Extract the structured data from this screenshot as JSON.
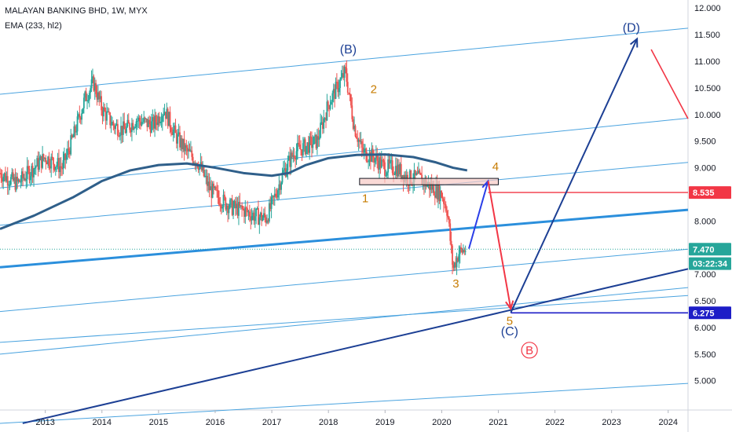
{
  "header": {
    "symbol_line": "MALAYAN BANKING BHD, 1W, MYX",
    "indicator_line": "EMA (233, hl2)"
  },
  "colors": {
    "up": "#26a69a",
    "down": "#ef5350",
    "ema": "#2f5f8a",
    "channel": "#4aa3df",
    "channel_bold": "#2b8fdc",
    "navy": "#1c3f94",
    "red_arrow": "#f23645",
    "wave_label_orange": "#c77c02",
    "price_label_green": "#26a69a",
    "axis_text": "#131722"
  },
  "chart_data": {
    "type": "candlestick",
    "x_range": [
      2012.2,
      2024.35
    ],
    "y_range": [
      4.45,
      12.15
    ],
    "xtick_labels": [
      "2013",
      "2014",
      "2015",
      "2016",
      "2017",
      "2018",
      "2019",
      "2020",
      "2021",
      "2022",
      "2023",
      "2024"
    ],
    "xtick_values": [
      2013,
      2014,
      2015,
      2016,
      2017,
      2018,
      2019,
      2020,
      2021,
      2022,
      2023,
      2024
    ],
    "ytick_labels": [
      "5.000",
      "5.500",
      "6.000",
      "6.500",
      "7.000",
      "7.500",
      "8.000",
      "8.500",
      "9.000",
      "9.500",
      "10.000",
      "10.500",
      "11.000",
      "11.500",
      "12.000"
    ],
    "ytick_values": [
      5.0,
      5.5,
      6.0,
      6.5,
      7.0,
      7.5,
      8.0,
      8.5,
      9.0,
      9.5,
      10.0,
      10.5,
      11.0,
      11.5,
      12.0
    ],
    "price_path": [
      [
        2012.2,
        8.9
      ],
      [
        2012.5,
        8.7
      ],
      [
        2012.8,
        9.0
      ],
      [
        2013.0,
        9.2
      ],
      [
        2013.3,
        9.0
      ],
      [
        2013.5,
        9.6
      ],
      [
        2013.7,
        10.3
      ],
      [
        2013.85,
        10.6
      ],
      [
        2014.0,
        10.1
      ],
      [
        2014.2,
        9.8
      ],
      [
        2014.4,
        9.7
      ],
      [
        2014.6,
        9.9
      ],
      [
        2014.9,
        9.8
      ],
      [
        2015.1,
        10.1
      ],
      [
        2015.3,
        9.6
      ],
      [
        2015.5,
        9.3
      ],
      [
        2015.7,
        9.1
      ],
      [
        2015.9,
        8.6
      ],
      [
        2016.1,
        8.4
      ],
      [
        2016.3,
        8.25
      ],
      [
        2016.5,
        8.2
      ],
      [
        2016.7,
        8.1
      ],
      [
        2016.9,
        8.05
      ],
      [
        2017.0,
        8.3
      ],
      [
        2017.2,
        8.9
      ],
      [
        2017.4,
        9.3
      ],
      [
        2017.6,
        9.4
      ],
      [
        2017.8,
        9.5
      ],
      [
        2018.0,
        10.2
      ],
      [
        2018.15,
        10.5
      ],
      [
        2018.3,
        10.8
      ],
      [
        2018.45,
        9.8
      ],
      [
        2018.6,
        9.3
      ],
      [
        2018.8,
        9.2
      ],
      [
        2019.0,
        9.0
      ],
      [
        2019.2,
        9.0
      ],
      [
        2019.4,
        8.8
      ],
      [
        2019.6,
        8.8
      ],
      [
        2019.8,
        8.65
      ],
      [
        2020.0,
        8.5
      ],
      [
        2020.1,
        8.2
      ],
      [
        2020.2,
        7.1
      ],
      [
        2020.3,
        7.4
      ],
      [
        2020.42,
        7.47
      ]
    ],
    "ema_233": [
      [
        2012.2,
        7.85
      ],
      [
        2012.8,
        8.1
      ],
      [
        2013.5,
        8.45
      ],
      [
        2014.0,
        8.75
      ],
      [
        2014.5,
        8.95
      ],
      [
        2015.0,
        9.05
      ],
      [
        2015.5,
        9.08
      ],
      [
        2016.0,
        9.0
      ],
      [
        2016.5,
        8.9
      ],
      [
        2017.0,
        8.85
      ],
      [
        2017.3,
        8.9
      ],
      [
        2017.6,
        9.05
      ],
      [
        2018.0,
        9.18
      ],
      [
        2018.5,
        9.24
      ],
      [
        2019.0,
        9.25
      ],
      [
        2019.5,
        9.2
      ],
      [
        2019.9,
        9.1
      ],
      [
        2020.2,
        9.0
      ],
      [
        2020.45,
        8.95
      ]
    ],
    "channel_lines": [
      {
        "name": "upper",
        "style": "thin",
        "from": [
          2012.2,
          10.38
        ],
        "to": [
          2024.35,
          11.62
        ]
      },
      {
        "name": "mid-upper",
        "style": "thin",
        "from": [
          2012.2,
          8.62
        ],
        "to": [
          2024.35,
          9.93
        ]
      },
      {
        "name": "mid",
        "style": "thin",
        "from": [
          2012.2,
          7.92
        ],
        "to": [
          2024.35,
          9.1
        ]
      },
      {
        "name": "bold",
        "style": "bold",
        "from": [
          2012.2,
          7.13
        ],
        "to": [
          2024.35,
          8.21
        ]
      },
      {
        "name": "low-1",
        "style": "thin",
        "from": [
          2012.2,
          6.3
        ],
        "to": [
          2024.35,
          7.47
        ]
      },
      {
        "name": "low-2",
        "style": "thin",
        "from": [
          2012.2,
          5.72
        ],
        "to": [
          2024.35,
          6.6
        ]
      },
      {
        "name": "low-3",
        "style": "thin",
        "from": [
          2012.2,
          5.5
        ],
        "to": [
          2024.35,
          6.75
        ]
      },
      {
        "name": "bottom",
        "style": "thin",
        "from": [
          2012.2,
          4.2
        ],
        "to": [
          2024.35,
          4.95
        ]
      },
      {
        "name": "navy-support",
        "style": "navy",
        "from": [
          2012.6,
          4.2
        ],
        "to": [
          2024.35,
          7.1
        ]
      }
    ],
    "projection": {
      "blue_up": {
        "from": [
          2020.48,
          7.48
        ],
        "to": [
          2020.82,
          8.75
        ]
      },
      "red_down": {
        "from": [
          2020.82,
          8.75
        ],
        "to": [
          2021.22,
          6.35
        ]
      },
      "navy_up": {
        "from": [
          2021.22,
          6.28
        ],
        "to": [
          2023.45,
          11.42
        ]
      },
      "red_after": {
        "from": [
          2023.7,
          11.22
        ],
        "to": [
          2024.35,
          9.92
        ]
      }
    },
    "resistance_box": {
      "x": [
        2018.55,
        2021.0
      ],
      "y": [
        8.68,
        8.8
      ]
    },
    "hlines": [
      {
        "name": "target-8535",
        "y": 8.535,
        "x_from": 2020.82,
        "color": "red"
      },
      {
        "name": "target-6275",
        "y": 6.275,
        "x_from": 2021.22,
        "color": "navy"
      },
      {
        "name": "last-price",
        "y": 7.47,
        "x_from": 2012.2,
        "color": "green-dotted"
      }
    ],
    "wave_labels": [
      {
        "text": "(B)",
        "x": 2018.35,
        "y": 11.15,
        "color": "navy"
      },
      {
        "text": "2",
        "x": 2018.8,
        "y": 10.4,
        "color": "orange"
      },
      {
        "text": "1",
        "x": 2018.65,
        "y": 8.35,
        "color": "orange"
      },
      {
        "text": "4",
        "x": 2020.95,
        "y": 8.95,
        "color": "orange"
      },
      {
        "text": "3",
        "x": 2020.25,
        "y": 6.75,
        "color": "orange"
      },
      {
        "text": "5",
        "x": 2021.2,
        "y": 6.05,
        "color": "orange"
      },
      {
        "text": "(C)",
        "x": 2021.2,
        "y": 5.85,
        "color": "navy"
      },
      {
        "text": "B",
        "x": 2021.55,
        "y": 5.5,
        "color": "red",
        "circled": true
      },
      {
        "text": "(D)",
        "x": 2023.35,
        "y": 11.55,
        "color": "navy"
      }
    ],
    "price_labels": [
      {
        "text": "8.535",
        "value": 8.535,
        "color": "red"
      },
      {
        "text": "7.470",
        "value": 7.47,
        "color": "green"
      },
      {
        "text": "03:22:34",
        "value": 7.2,
        "color": "green"
      },
      {
        "text": "6.275",
        "value": 6.275,
        "color": "navy"
      }
    ]
  }
}
